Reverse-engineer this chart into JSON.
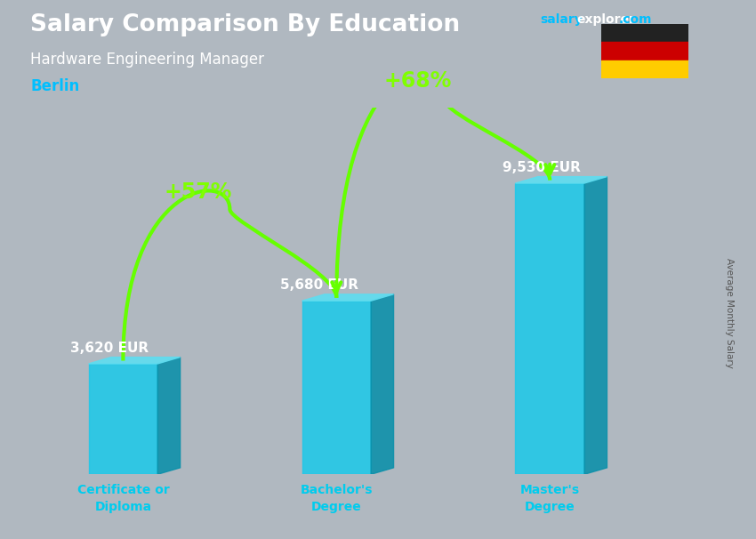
{
  "title": "Salary Comparison By Education",
  "subtitle": "Hardware Engineering Manager",
  "city": "Berlin",
  "website_salary": "salary",
  "website_explorer": "explorer",
  "website_com": ".com",
  "ylabel": "Average Monthly Salary",
  "categories": [
    "Certificate or\nDiploma",
    "Bachelor's\nDegree",
    "Master's\nDegree"
  ],
  "values": [
    3620,
    5680,
    9530
  ],
  "value_labels": [
    "3,620 EUR",
    "5,680 EUR",
    "9,530 EUR"
  ],
  "pct_labels": [
    "+57%",
    "+68%"
  ],
  "bar_color_face": "#1EC8E8",
  "bar_color_side": "#0A90AA",
  "bar_color_top": "#60DCEF",
  "bg_color": "#B0B8C0",
  "overlay_color": "#D8DDE2",
  "title_color": "#ffffff",
  "subtitle_color": "#ffffff",
  "city_color": "#00BFFF",
  "label_color": "#ffffff",
  "pct_color": "#7FFF00",
  "tick_color": "#00CCEE",
  "arrow_color": "#66FF00",
  "website_color1": "#00BFFF",
  "website_color2": "#ffffff",
  "website_color3": "#00BFFF",
  "flag_black": "#222222",
  "flag_red": "#CC0000",
  "flag_gold": "#FFCC00",
  "ylim": [
    0,
    12000
  ],
  "bar_width": 0.55,
  "x_positions": [
    1.0,
    2.7,
    4.4
  ],
  "xlim": [
    0.2,
    5.5
  ],
  "depth_x": 0.18,
  "depth_y": 0.25
}
